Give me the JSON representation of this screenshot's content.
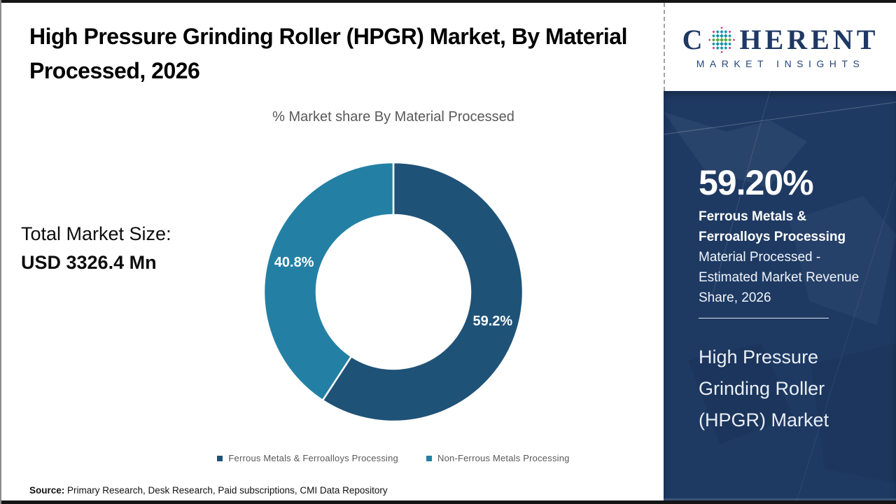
{
  "header": {
    "title": "High Pressure Grinding Roller (HPGR) Market, By Material Processed, 2026"
  },
  "total_market": {
    "label": "Total Market Size:",
    "value": "USD 3326.4 Mn"
  },
  "chart_data": {
    "type": "pie",
    "donut": true,
    "title": "% Market share By Material Processed",
    "categories": [
      "Ferrous Metals & Ferroalloys Processing",
      "Non-Ferrous Metals Processing"
    ],
    "values": [
      59.2,
      40.8
    ],
    "labels": [
      "59.2%",
      "40.8%"
    ],
    "colors": [
      "#1F5277",
      "#2380A4"
    ],
    "start_angle_deg": 0,
    "direction": "clockwise",
    "legend_position": "bottom"
  },
  "source": {
    "prefix": "Source:",
    "text": " Primary Research, Desk Research, Paid subscriptions, CMI Data Repository"
  },
  "logo": {
    "name_start": "C",
    "name_end": "HERENT",
    "tagline": "MARKET INSIGHTS",
    "navy": "#1F3864",
    "dot_teal": "#1591A8",
    "dot_green": "#5BA645",
    "dot_pink": "#C2397E"
  },
  "sidebar": {
    "stat_value": "59.20%",
    "stat_category": "Ferrous Metals & Ferroalloys Processing",
    "stat_description": " Material Processed - Estimated Market Revenue Share, 2026",
    "product_title": "High Pressure Grinding Roller (HPGR) Market",
    "background": "#1E3A63"
  }
}
